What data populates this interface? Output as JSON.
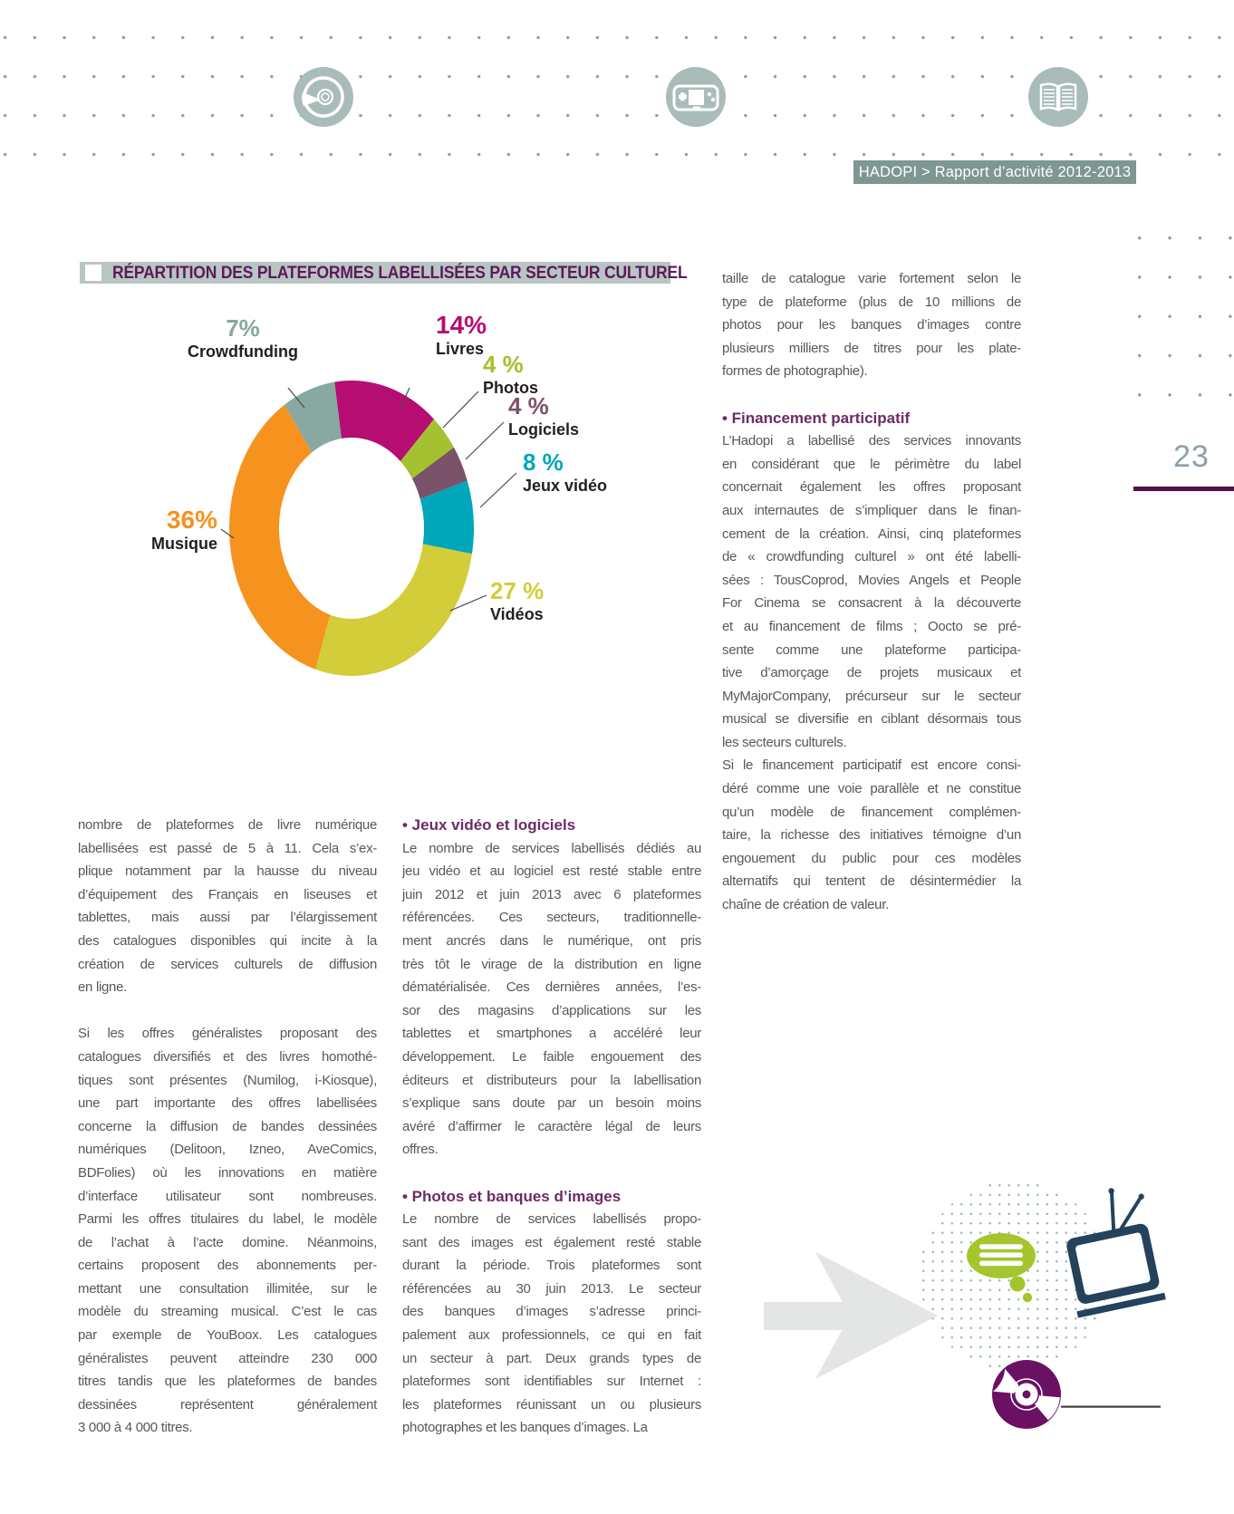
{
  "page": {
    "number": "23"
  },
  "header": {
    "badge": "HADOPI > Rapport d’activité 2012-2013",
    "icons": [
      "cd-icon",
      "gamepad-icon",
      "open-book-icon"
    ]
  },
  "section_title": "RÉPARTITION DES PLATEFORMES LABELLISÉES PAR SECTEUR CULTUREL",
  "chart_data": {
    "type": "donut",
    "title": "Répartition des plateformes labellisées par secteur culturel",
    "legend_position": "around",
    "segments": [
      {
        "label": "Livres",
        "value": 14,
        "pct": "14%",
        "color": "#b60d72"
      },
      {
        "label": "Photos",
        "value": 4,
        "pct": "4 %",
        "color": "#a4c22f"
      },
      {
        "label": "Logiciels",
        "value": 4,
        "pct": "4 %",
        "color": "#7a5269"
      },
      {
        "label": "Jeux vidéo",
        "value": 8,
        "pct": "8 %",
        "color": "#00a6ba"
      },
      {
        "label": "Vidéos",
        "value": 27,
        "pct": "27 %",
        "color": "#d2cd39"
      },
      {
        "label": "Musique",
        "value": 36,
        "pct": "36%",
        "color": "#f6921e"
      },
      {
        "label": "Crowdfunding",
        "value": 7,
        "pct": "7%",
        "color": "#87a9a1"
      }
    ]
  },
  "columns": {
    "col1": {
      "p1_lines": [
        "nombre de plateformes de livre numérique",
        "labellisées est passé de 5 à 11. Cela s’ex-",
        "plique notamment par la hausse du niveau",
        "d’équipement des Français en liseuses et",
        "tablettes, mais aussi par l’élargissement",
        "des catalogues disponibles qui incite à la",
        "création de services culturels de diffusion",
        "en ligne."
      ],
      "p2_lines": [
        "Si les offres généralistes proposant des",
        "catalogues diversifiés et des livres homothé-",
        "tiques sont présentes (Numilog, i-Kiosque),",
        "une part importante des offres labellisées",
        "concerne la diffusion de bandes dessinées",
        "numériques (Delitoon, Izneo, AveComics,",
        "BDFolies) où les innovations en matière",
        "d’interface utilisateur sont nombreuses.",
        "Parmi les offres titulaires du label, le modèle",
        "de l’achat à l’acte domine. Néanmoins,",
        "certains proposent des abonnements per-",
        "mettant une consultation illimitée, sur le",
        "modèle du streaming musical. C’est le cas",
        "par exemple de YouBoox. Les catalogues",
        "généralistes peuvent atteindre 230 000",
        "titres tandis que les plateformes de bandes",
        "dessinées représentent généralement",
        "3 000 à 4 000 titres."
      ]
    },
    "col2": {
      "h1": "• Jeux vidéo et logiciels",
      "p1_lines": [
        "Le nombre de services labellisés dédiés au",
        "jeu vidéo et au logiciel est resté stable entre",
        "juin 2012 et juin 2013 avec 6 plateformes",
        "référencées. Ces secteurs, traditionnelle-",
        "ment ancrés dans le numérique, ont pris",
        "très tôt le virage de la distribution en ligne",
        "dématérialisée. Ces dernières années, l’es-",
        "sor des magasins d’applications sur les",
        "tablettes et smartphones a accéléré leur",
        "développement. Le faible engouement des",
        "éditeurs et distributeurs pour la labellisation",
        "s’explique sans doute par un besoin moins",
        "avéré d’affirmer le caractère légal de leurs",
        "offres."
      ],
      "h2": "• Photos et banques d’images",
      "p2_lines": [
        "Le nombre de services labellisés propo-",
        "sant des images est également resté stable",
        "durant la période. Trois plateformes sont",
        "référencées au 30 juin 2013. Le secteur",
        "des banques d’images s’adresse princi-",
        "palement aux professionnels, ce qui en fait",
        "un secteur à part. Deux grands types de",
        "plateformes sont identifiables sur Internet :",
        "les plateformes réunissant un ou plusieurs",
        "photographes et les banques d’images. La"
      ]
    },
    "col3": {
      "p1_lines": [
        "taille de catalogue varie fortement selon le",
        "type de plateforme (plus de 10 millions de",
        "photos pour les banques d’images contre",
        "plusieurs milliers de titres pour les plate-",
        "formes de photographie)."
      ],
      "h1": "• Financement participatif",
      "p2_lines": [
        "L’Hadopi a labellisé des services innovants",
        "en considérant que le périmètre du label",
        "concernait également les offres proposant",
        "aux internautes de s’impliquer dans le finan-",
        "cement de la création. Ainsi, cinq plateformes",
        "de « crowdfunding culturel » ont été labelli-",
        "sées : TousCoprod, Movies Angels et People",
        "For Cinema se consacrent à la découverte",
        "et au financement de films ; Oocto se pré-",
        "sente comme une plateforme participa-",
        "tive d’amorçage de projets musicaux et",
        "MyMajorCompany, précurseur sur le secteur",
        "musical se diversifie en ciblant désormais tous",
        "les secteurs culturels."
      ],
      "p3_lines": [
        "Si le financement participatif est encore consi-",
        "déré comme une voie parallèle et ne constitue",
        "qu’un modèle de financement complémen-",
        "taire, la richesse des initiatives témoigne d’un",
        "engouement du public pour ces modèles",
        "alternatifs qui tentent de désintermédier la",
        "chaîne de création de valeur."
      ]
    }
  },
  "colors": {
    "accent_purple": "#5c195c",
    "heading_purple": "#6d2a68",
    "badge_bg": "#7f9793",
    "title_bar_bg": "#b9c5c2",
    "icon_circle_bg": "#a9bcba",
    "dot_grid": "#8aa2a0",
    "page_number": "#8ba1ab",
    "rule_purple": "#4f1150",
    "body_text": "#58585a",
    "arrow_gray": "#e4e5e5",
    "tv_navy": "#24425c",
    "cd_purple": "#6b1163",
    "bubble_green": "#a5c52f"
  }
}
